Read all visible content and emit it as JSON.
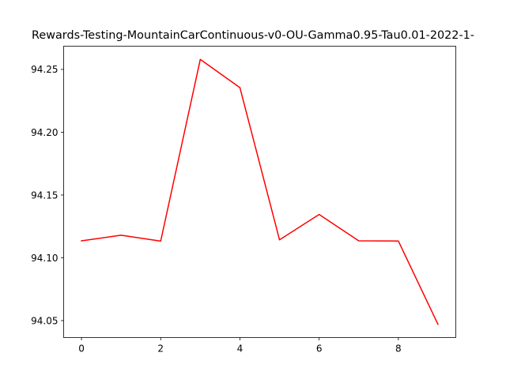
{
  "chart_data": {
    "type": "line",
    "title": "Rewards-Testing-MountainCarContinuous-v0-OU-Gamma0.95-Tau0.01-2022-1-",
    "xlabel": "",
    "ylabel": "",
    "x": [
      0,
      1,
      2,
      3,
      4,
      5,
      6,
      7,
      8,
      9
    ],
    "series": [
      {
        "color": "#ff0000",
        "values": [
          94.1135,
          94.118,
          94.1133,
          94.258,
          94.2355,
          94.1143,
          94.1345,
          94.1135,
          94.1134,
          94.047
        ]
      }
    ],
    "xlim": [
      -0.45,
      9.45
    ],
    "ylim": [
      94.0365,
      94.2685
    ],
    "xticks": [
      0,
      2,
      4,
      6,
      8
    ],
    "xtick_labels": [
      "0",
      "2",
      "4",
      "6",
      "8"
    ],
    "yticks": [
      94.05,
      94.1,
      94.15,
      94.2,
      94.25
    ],
    "ytick_labels": [
      "94.05",
      "94.10",
      "94.15",
      "94.20",
      "94.25"
    ],
    "grid": false,
    "legend": "none"
  }
}
